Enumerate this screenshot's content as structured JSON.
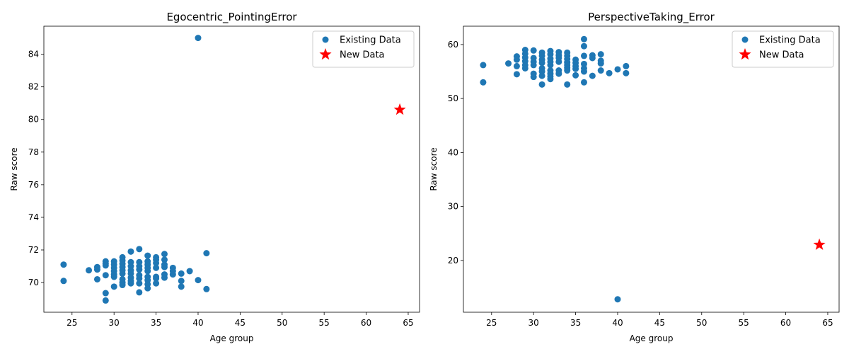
{
  "chart_data": [
    {
      "type": "scatter",
      "title": "Egocentric_PointingError",
      "xlabel": "Age group",
      "ylabel": "Raw score",
      "xlim": [
        21.65,
        66.35
      ],
      "ylim": [
        68.18,
        85.72
      ],
      "xticks": [
        25,
        30,
        35,
        40,
        45,
        50,
        55,
        60,
        65
      ],
      "yticks": [
        70,
        72,
        74,
        76,
        78,
        80,
        82,
        84
      ],
      "grid": false,
      "legend_position": "top-right",
      "series": [
        {
          "name": "Existing Data",
          "marker": "circle",
          "color": "#1f77b4",
          "points": [
            [
              24,
              71.1
            ],
            [
              24,
              70.1
            ],
            [
              27,
              70.75
            ],
            [
              28,
              70.95
            ],
            [
              28,
              70.8
            ],
            [
              28,
              70.2
            ],
            [
              29,
              71.3
            ],
            [
              29,
              71.15
            ],
            [
              29,
              71.05
            ],
            [
              29,
              70.45
            ],
            [
              29,
              69.35
            ],
            [
              29,
              68.9
            ],
            [
              30,
              71.3
            ],
            [
              30,
              71.1
            ],
            [
              30,
              70.9
            ],
            [
              30,
              70.7
            ],
            [
              30,
              70.5
            ],
            [
              30,
              70.35
            ],
            [
              30,
              69.75
            ],
            [
              31,
              71.55
            ],
            [
              31,
              71.35
            ],
            [
              31,
              71.15
            ],
            [
              31,
              70.95
            ],
            [
              31,
              70.75
            ],
            [
              31,
              70.55
            ],
            [
              31,
              70.2
            ],
            [
              31,
              70.0
            ],
            [
              31,
              69.85
            ],
            [
              32,
              71.9
            ],
            [
              32,
              71.25
            ],
            [
              32,
              71.0
            ],
            [
              32,
              70.75
            ],
            [
              32,
              70.55
            ],
            [
              32,
              70.3
            ],
            [
              32,
              70.1
            ],
            [
              32,
              69.95
            ],
            [
              33,
              72.05
            ],
            [
              33,
              71.25
            ],
            [
              33,
              71.0
            ],
            [
              33,
              70.8
            ],
            [
              33,
              70.45
            ],
            [
              33,
              70.25
            ],
            [
              33,
              69.95
            ],
            [
              33,
              69.4
            ],
            [
              34,
              71.65
            ],
            [
              34,
              71.3
            ],
            [
              34,
              71.1
            ],
            [
              34,
              70.9
            ],
            [
              34,
              70.7
            ],
            [
              34,
              70.35
            ],
            [
              34,
              70.15
            ],
            [
              34,
              69.9
            ],
            [
              34,
              69.65
            ],
            [
              35,
              71.55
            ],
            [
              35,
              71.4
            ],
            [
              35,
              71.2
            ],
            [
              35,
              70.9
            ],
            [
              35,
              70.35
            ],
            [
              35,
              70.25
            ],
            [
              35,
              69.95
            ],
            [
              36,
              71.75
            ],
            [
              36,
              71.4
            ],
            [
              36,
              71.1
            ],
            [
              36,
              70.95
            ],
            [
              36,
              70.5
            ],
            [
              36,
              70.3
            ],
            [
              37,
              70.9
            ],
            [
              37,
              70.7
            ],
            [
              37,
              70.5
            ],
            [
              38,
              70.55
            ],
            [
              38,
              70.1
            ],
            [
              38,
              69.75
            ],
            [
              39,
              70.7
            ],
            [
              40,
              85.0
            ],
            [
              40,
              70.15
            ],
            [
              41,
              71.8
            ],
            [
              41,
              69.6
            ]
          ]
        },
        {
          "name": "New Data",
          "marker": "star",
          "color": "#ff0000",
          "points": [
            [
              64,
              80.6
            ]
          ]
        }
      ]
    },
    {
      "type": "scatter",
      "title": "PerspectiveTaking_Error",
      "xlabel": "Age group",
      "ylabel": "Raw score",
      "xlim": [
        21.65,
        66.35
      ],
      "ylim": [
        10.4,
        63.4
      ],
      "xticks": [
        25,
        30,
        35,
        40,
        45,
        50,
        55,
        60,
        65
      ],
      "yticks": [
        20,
        30,
        40,
        50,
        60
      ],
      "grid": false,
      "legend_position": "top-right",
      "series": [
        {
          "name": "Existing Data",
          "marker": "circle",
          "color": "#1f77b4",
          "points": [
            [
              24,
              56.2
            ],
            [
              24,
              53.0
            ],
            [
              27,
              56.5
            ],
            [
              28,
              57.8
            ],
            [
              28,
              57.2
            ],
            [
              28,
              56.0
            ],
            [
              28,
              54.5
            ],
            [
              29,
              59.0
            ],
            [
              29,
              58.3
            ],
            [
              29,
              57.6
            ],
            [
              29,
              56.9
            ],
            [
              29,
              56.2
            ],
            [
              29,
              55.6
            ],
            [
              30,
              58.9
            ],
            [
              30,
              57.5
            ],
            [
              30,
              56.8
            ],
            [
              30,
              56.2
            ],
            [
              30,
              54.6
            ],
            [
              30,
              54.0
            ],
            [
              31,
              58.5
            ],
            [
              31,
              57.9
            ],
            [
              31,
              57.2
            ],
            [
              31,
              56.6
            ],
            [
              31,
              55.6
            ],
            [
              31,
              55.0
            ],
            [
              31,
              54.2
            ],
            [
              31,
              52.6
            ],
            [
              32,
              58.8
            ],
            [
              32,
              58.2
            ],
            [
              32,
              57.4
            ],
            [
              32,
              56.8
            ],
            [
              32,
              56.2
            ],
            [
              32,
              55.2
            ],
            [
              32,
              54.6
            ],
            [
              32,
              54.1
            ],
            [
              32,
              53.6
            ],
            [
              33,
              58.6
            ],
            [
              33,
              58.0
            ],
            [
              33,
              57.5
            ],
            [
              33,
              56.8
            ],
            [
              33,
              55.2
            ],
            [
              33,
              54.6
            ],
            [
              34,
              58.5
            ],
            [
              34,
              57.9
            ],
            [
              34,
              57.3
            ],
            [
              34,
              56.7
            ],
            [
              34,
              56.2
            ],
            [
              34,
              55.7
            ],
            [
              34,
              55.2
            ],
            [
              34,
              52.6
            ],
            [
              35,
              57.2
            ],
            [
              35,
              56.6
            ],
            [
              35,
              56.0
            ],
            [
              35,
              55.5
            ],
            [
              35,
              54.3
            ],
            [
              36,
              61.0
            ],
            [
              36,
              59.7
            ],
            [
              36,
              57.9
            ],
            [
              36,
              56.4
            ],
            [
              36,
              55.6
            ],
            [
              36,
              55.0
            ],
            [
              36,
              53.0
            ],
            [
              37,
              58.0
            ],
            [
              37,
              57.5
            ],
            [
              37,
              54.2
            ],
            [
              38,
              58.2
            ],
            [
              38,
              57.0
            ],
            [
              38,
              56.5
            ],
            [
              38,
              55.2
            ],
            [
              39,
              54.7
            ],
            [
              40,
              55.4
            ],
            [
              40,
              12.8
            ],
            [
              41,
              56.0
            ],
            [
              41,
              54.7
            ]
          ]
        },
        {
          "name": "New Data",
          "marker": "star",
          "color": "#ff0000",
          "points": [
            [
              64,
              22.9
            ]
          ]
        }
      ]
    }
  ]
}
